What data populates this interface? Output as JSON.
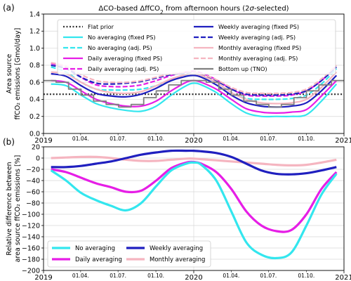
{
  "chart_data": [
    {
      "type": "line",
      "panel_label": "(a)",
      "title": "ΔCO-based ΔffCO₂ from afternoon hours (2σ-selected)",
      "title_parts": [
        "ΔCO-based ΔffCO",
        "2",
        " from afternoon hours (2",
        "σ",
        "-selected)"
      ],
      "xlabel": "",
      "ylabel_lines": [
        "Area source",
        "ffCO₂ emissions [Gmol/day]"
      ],
      "ylim": [
        0.0,
        1.4
      ],
      "yticks": [
        0.0,
        0.2,
        0.4,
        0.6,
        0.8,
        1.0,
        1.2,
        1.4
      ],
      "ytick_labels": [
        "0.0",
        "0.2",
        "0.4",
        "0.6",
        "0.8",
        "1.0",
        "1.2",
        "1.4"
      ],
      "xlim": [
        2019.0,
        2021.0
      ],
      "xtick_major": [
        2019.0,
        2020.0,
        2021.0
      ],
      "xtick_major_labels": [
        "2019",
        "2020",
        "2021"
      ],
      "xtick_minor": [
        2019.247,
        2019.496,
        2019.748,
        2020.249,
        2020.497,
        2020.749
      ],
      "xtick_minor_labels": [
        "01.04.",
        "01.07.",
        "01.10.",
        "01.04.",
        "01.07.",
        "01.10."
      ],
      "grid": true,
      "legend_position": "top (inside), two columns",
      "legend": [
        {
          "name": "Flat prior",
          "color": "#333333",
          "dash": "dotted"
        },
        {
          "name": "Weekly averaging (fixed PS)",
          "color": "#1f1fbf",
          "dash": "solid"
        },
        {
          "name": "No averaging (fixed PS)",
          "color": "#33e6ee",
          "dash": "solid"
        },
        {
          "name": "Weekly averaging (adj. PS)",
          "color": "#1f1fbf",
          "dash": "dashed"
        },
        {
          "name": "No averaging (adj. PS)",
          "color": "#33e6ee",
          "dash": "dashed"
        },
        {
          "name": "Monthly averaging (fixed PS)",
          "color": "#f5b5c0",
          "dash": "solid"
        },
        {
          "name": "Daily averaging (fixed PS)",
          "color": "#e61ee6",
          "dash": "solid"
        },
        {
          "name": "Monthly averaging (adj. PS)",
          "color": "#f5b5c0",
          "dash": "dashed"
        },
        {
          "name": "Daily averaging (adj. PS)",
          "color": "#e61ee6",
          "dash": "dashed"
        },
        {
          "name": "Bottom up (TNO)",
          "color": "#808080",
          "dash": "solid"
        }
      ],
      "series": [
        {
          "name": "Flat prior",
          "color": "#333333",
          "dash": "dotted",
          "width": 2.2,
          "x": [
            2019.0,
            2021.0
          ],
          "y": [
            0.46,
            0.46
          ]
        },
        {
          "name": "No averaging (fixed PS)",
          "color": "#33e6ee",
          "dash": "solid",
          "width": 2.2,
          "x": [
            2019.05,
            2019.15,
            2019.25,
            2019.35,
            2019.45,
            2019.55,
            2019.65,
            2019.75,
            2019.85,
            2019.95,
            2020.0,
            2020.05,
            2020.15,
            2020.25,
            2020.35,
            2020.45,
            2020.55,
            2020.65,
            2020.75,
            2020.85,
            2020.95
          ],
          "y": [
            0.58,
            0.56,
            0.45,
            0.35,
            0.3,
            0.27,
            0.26,
            0.32,
            0.45,
            0.56,
            0.59,
            0.57,
            0.48,
            0.35,
            0.24,
            0.2,
            0.2,
            0.2,
            0.22,
            0.38,
            0.58
          ]
        },
        {
          "name": "No averaging (adj. PS)",
          "color": "#33e6ee",
          "dash": "dashed",
          "width": 2.2,
          "x": [
            2019.05,
            2019.15,
            2019.25,
            2019.35,
            2019.45,
            2019.55,
            2019.65,
            2019.75,
            2019.85,
            2019.95,
            2020.0,
            2020.05,
            2020.15,
            2020.25,
            2020.35,
            2020.45,
            2020.55,
            2020.65,
            2020.75,
            2020.85,
            2020.95
          ],
          "y": [
            0.78,
            0.72,
            0.6,
            0.52,
            0.51,
            0.51,
            0.52,
            0.56,
            0.62,
            0.68,
            0.7,
            0.68,
            0.6,
            0.48,
            0.41,
            0.4,
            0.4,
            0.41,
            0.45,
            0.58,
            0.76
          ]
        },
        {
          "name": "Daily averaging (fixed PS)",
          "color": "#e61ee6",
          "dash": "solid",
          "width": 2.2,
          "x": [
            2019.05,
            2019.15,
            2019.25,
            2019.35,
            2019.45,
            2019.55,
            2019.65,
            2019.75,
            2019.85,
            2019.95,
            2020.0,
            2020.05,
            2020.15,
            2020.25,
            2020.35,
            2020.45,
            2020.55,
            2020.65,
            2020.75,
            2020.85,
            2020.95
          ],
          "y": [
            0.62,
            0.6,
            0.5,
            0.4,
            0.35,
            0.32,
            0.32,
            0.38,
            0.5,
            0.6,
            0.62,
            0.6,
            0.52,
            0.4,
            0.29,
            0.25,
            0.24,
            0.25,
            0.28,
            0.44,
            0.62
          ]
        },
        {
          "name": "Daily averaging (adj. PS)",
          "color": "#e61ee6",
          "dash": "dashed",
          "width": 2.2,
          "x": [
            2019.05,
            2019.15,
            2019.25,
            2019.35,
            2019.45,
            2019.55,
            2019.65,
            2019.75,
            2019.85,
            2019.95,
            2020.0,
            2020.05,
            2020.15,
            2020.25,
            2020.35,
            2020.45,
            2020.55,
            2020.65,
            2020.75,
            2020.85,
            2020.95
          ],
          "y": [
            0.82,
            0.78,
            0.66,
            0.57,
            0.55,
            0.55,
            0.57,
            0.62,
            0.68,
            0.72,
            0.73,
            0.71,
            0.63,
            0.52,
            0.45,
            0.44,
            0.44,
            0.45,
            0.5,
            0.62,
            0.79
          ]
        },
        {
          "name": "Weekly averaging (fixed PS)",
          "color": "#1f1fbf",
          "dash": "solid",
          "width": 2.2,
          "x": [
            2019.05,
            2019.15,
            2019.25,
            2019.35,
            2019.45,
            2019.55,
            2019.65,
            2019.75,
            2019.85,
            2019.95,
            2020.0,
            2020.05,
            2020.15,
            2020.25,
            2020.35,
            2020.45,
            2020.55,
            2020.65,
            2020.75,
            2020.85,
            2020.95
          ],
          "y": [
            0.7,
            0.67,
            0.56,
            0.47,
            0.44,
            0.43,
            0.46,
            0.53,
            0.62,
            0.67,
            0.68,
            0.66,
            0.57,
            0.45,
            0.36,
            0.32,
            0.31,
            0.32,
            0.36,
            0.5,
            0.68
          ]
        },
        {
          "name": "Weekly averaging (adj. PS)",
          "color": "#1f1fbf",
          "dash": "dashed",
          "width": 2.2,
          "x": [
            2019.05,
            2019.15,
            2019.25,
            2019.35,
            2019.45,
            2019.55,
            2019.65,
            2019.75,
            2019.85,
            2019.95,
            2020.0,
            2020.05,
            2020.15,
            2020.25,
            2020.35,
            2020.45,
            2020.55,
            2020.65,
            2020.75,
            2020.85,
            2020.95
          ],
          "y": [
            0.8,
            0.76,
            0.66,
            0.59,
            0.58,
            0.59,
            0.61,
            0.65,
            0.69,
            0.71,
            0.71,
            0.69,
            0.62,
            0.52,
            0.46,
            0.45,
            0.45,
            0.46,
            0.5,
            0.62,
            0.78
          ]
        },
        {
          "name": "Monthly averaging (fixed PS)",
          "color": "#f5b5c0",
          "dash": "solid",
          "width": 2.2,
          "x": [
            2019.05,
            2019.15,
            2019.25,
            2019.35,
            2019.45,
            2019.55,
            2019.65,
            2019.75,
            2019.85,
            2019.95,
            2020.0,
            2020.05,
            2020.15,
            2020.25,
            2020.35,
            2020.45,
            2020.55,
            2020.65,
            2020.75,
            2020.85,
            2020.95
          ],
          "y": [
            0.72,
            0.7,
            0.6,
            0.52,
            0.48,
            0.47,
            0.49,
            0.56,
            0.64,
            0.69,
            0.7,
            0.68,
            0.6,
            0.48,
            0.4,
            0.36,
            0.35,
            0.36,
            0.4,
            0.54,
            0.72
          ]
        },
        {
          "name": "Monthly averaging (adj. PS)",
          "color": "#f5b5c0",
          "dash": "dashed",
          "width": 2.2,
          "x": [
            2019.05,
            2019.15,
            2019.25,
            2019.35,
            2019.45,
            2019.55,
            2019.65,
            2019.75,
            2019.85,
            2019.95,
            2020.0,
            2020.05,
            2020.15,
            2020.25,
            2020.35,
            2020.45,
            2020.55,
            2020.65,
            2020.75,
            2020.85,
            2020.95
          ],
          "y": [
            0.83,
            0.79,
            0.69,
            0.62,
            0.6,
            0.6,
            0.62,
            0.66,
            0.7,
            0.72,
            0.72,
            0.7,
            0.63,
            0.54,
            0.48,
            0.47,
            0.47,
            0.48,
            0.52,
            0.64,
            0.8
          ]
        },
        {
          "name": "Bottom up (TNO)",
          "color": "#808080",
          "dash": "steps",
          "width": 1.8,
          "x": [
            2019.0,
            2019.083,
            2019.167,
            2019.25,
            2019.333,
            2019.417,
            2019.5,
            2019.583,
            2019.667,
            2019.75,
            2019.833,
            2019.917,
            2020.0,
            2020.083,
            2020.167,
            2020.25,
            2020.333,
            2020.417,
            2020.5,
            2020.583,
            2020.667,
            2020.75,
            2020.833,
            2020.917,
            2021.0
          ],
          "y": [
            0.62,
            0.6,
            0.52,
            0.45,
            0.38,
            0.34,
            0.31,
            0.34,
            0.42,
            0.5,
            0.57,
            0.62,
            0.62,
            0.6,
            0.52,
            0.45,
            0.38,
            0.34,
            0.31,
            0.34,
            0.42,
            0.5,
            0.57,
            0.62,
            0.62
          ]
        }
      ]
    },
    {
      "type": "line",
      "panel_label": "(b)",
      "title": "",
      "xlabel": "",
      "ylabel_lines": [
        "Relative difference between",
        "area source ffCO₂ emissions [%]"
      ],
      "ylim": [
        -200,
        20
      ],
      "yticks": [
        -200,
        -180,
        -160,
        -140,
        -120,
        -100,
        -80,
        -60,
        -40,
        -20,
        0,
        20
      ],
      "ytick_labels": [
        "−200",
        "−180",
        "−160",
        "−140",
        "−120",
        "−100",
        "−80",
        "−60",
        "−40",
        "−20",
        "0",
        "20"
      ],
      "xlim": [
        2019.0,
        2021.0
      ],
      "xtick_major": [
        2019.0,
        2020.0,
        2021.0
      ],
      "xtick_major_labels": [
        "2019",
        "2020",
        "2021"
      ],
      "xtick_minor": [
        2019.247,
        2019.496,
        2019.748,
        2020.249,
        2020.497,
        2020.749
      ],
      "xtick_minor_labels": [
        "01.04.",
        "01.07.",
        "01.10.",
        "01.04.",
        "01.07.",
        "01.10."
      ],
      "grid": true,
      "legend_position": "bottom-left, two columns",
      "legend": [
        {
          "name": "No averaging",
          "color": "#33e6ee"
        },
        {
          "name": "Weekly averaging",
          "color": "#1f1fbf"
        },
        {
          "name": "Daily averaging",
          "color": "#e61ee6"
        },
        {
          "name": "Monthly averaging",
          "color": "#f5b5c0"
        }
      ],
      "series": [
        {
          "name": "Monthly averaging",
          "color": "#f5b5c0",
          "width": 3.2,
          "x": [
            2019.05,
            2019.15,
            2019.25,
            2019.35,
            2019.45,
            2019.55,
            2019.65,
            2019.75,
            2019.85,
            2019.95,
            2020.0,
            2020.05,
            2020.15,
            2020.25,
            2020.35,
            2020.45,
            2020.55,
            2020.65,
            2020.75,
            2020.85,
            2020.95
          ],
          "y": [
            0,
            1,
            2,
            2,
            0,
            -3,
            -5,
            -5,
            -3,
            -1,
            -1,
            -2,
            -4,
            -6,
            -8,
            -10,
            -12,
            -13,
            -12,
            -8,
            -3
          ]
        },
        {
          "name": "Weekly averaging",
          "color": "#1f1fbf",
          "width": 3.2,
          "x": [
            2019.05,
            2019.15,
            2019.25,
            2019.35,
            2019.45,
            2019.55,
            2019.65,
            2019.75,
            2019.85,
            2019.95,
            2020.0,
            2020.05,
            2020.15,
            2020.25,
            2020.35,
            2020.45,
            2020.55,
            2020.65,
            2020.75,
            2020.85,
            2020.95
          ],
          "y": [
            -16,
            -16,
            -14,
            -10,
            -6,
            0,
            6,
            10,
            13,
            13,
            13,
            12,
            9,
            2,
            -10,
            -22,
            -28,
            -29,
            -27,
            -22,
            -16
          ]
        },
        {
          "name": "Daily averaging",
          "color": "#e61ee6",
          "width": 3.2,
          "x": [
            2019.05,
            2019.15,
            2019.25,
            2019.35,
            2019.45,
            2019.55,
            2019.65,
            2019.75,
            2019.85,
            2019.95,
            2020.0,
            2020.05,
            2020.15,
            2020.25,
            2020.35,
            2020.45,
            2020.55,
            2020.65,
            2020.75,
            2020.85,
            2020.95
          ],
          "y": [
            -20,
            -25,
            -35,
            -45,
            -52,
            -60,
            -58,
            -40,
            -18,
            -8,
            -7,
            -10,
            -25,
            -55,
            -95,
            -120,
            -130,
            -128,
            -100,
            -55,
            -25
          ]
        },
        {
          "name": "No averaging",
          "color": "#33e6ee",
          "width": 3.2,
          "x": [
            2019.05,
            2019.15,
            2019.25,
            2019.35,
            2019.45,
            2019.55,
            2019.65,
            2019.75,
            2019.85,
            2019.95,
            2020.0,
            2020.05,
            2020.15,
            2020.25,
            2020.35,
            2020.45,
            2020.55,
            2020.65,
            2020.75,
            2020.85,
            2020.95
          ],
          "y": [
            -22,
            -40,
            -62,
            -75,
            -85,
            -93,
            -80,
            -50,
            -22,
            -10,
            -8,
            -12,
            -40,
            -95,
            -150,
            -172,
            -178,
            -168,
            -120,
            -65,
            -28
          ]
        }
      ]
    }
  ]
}
